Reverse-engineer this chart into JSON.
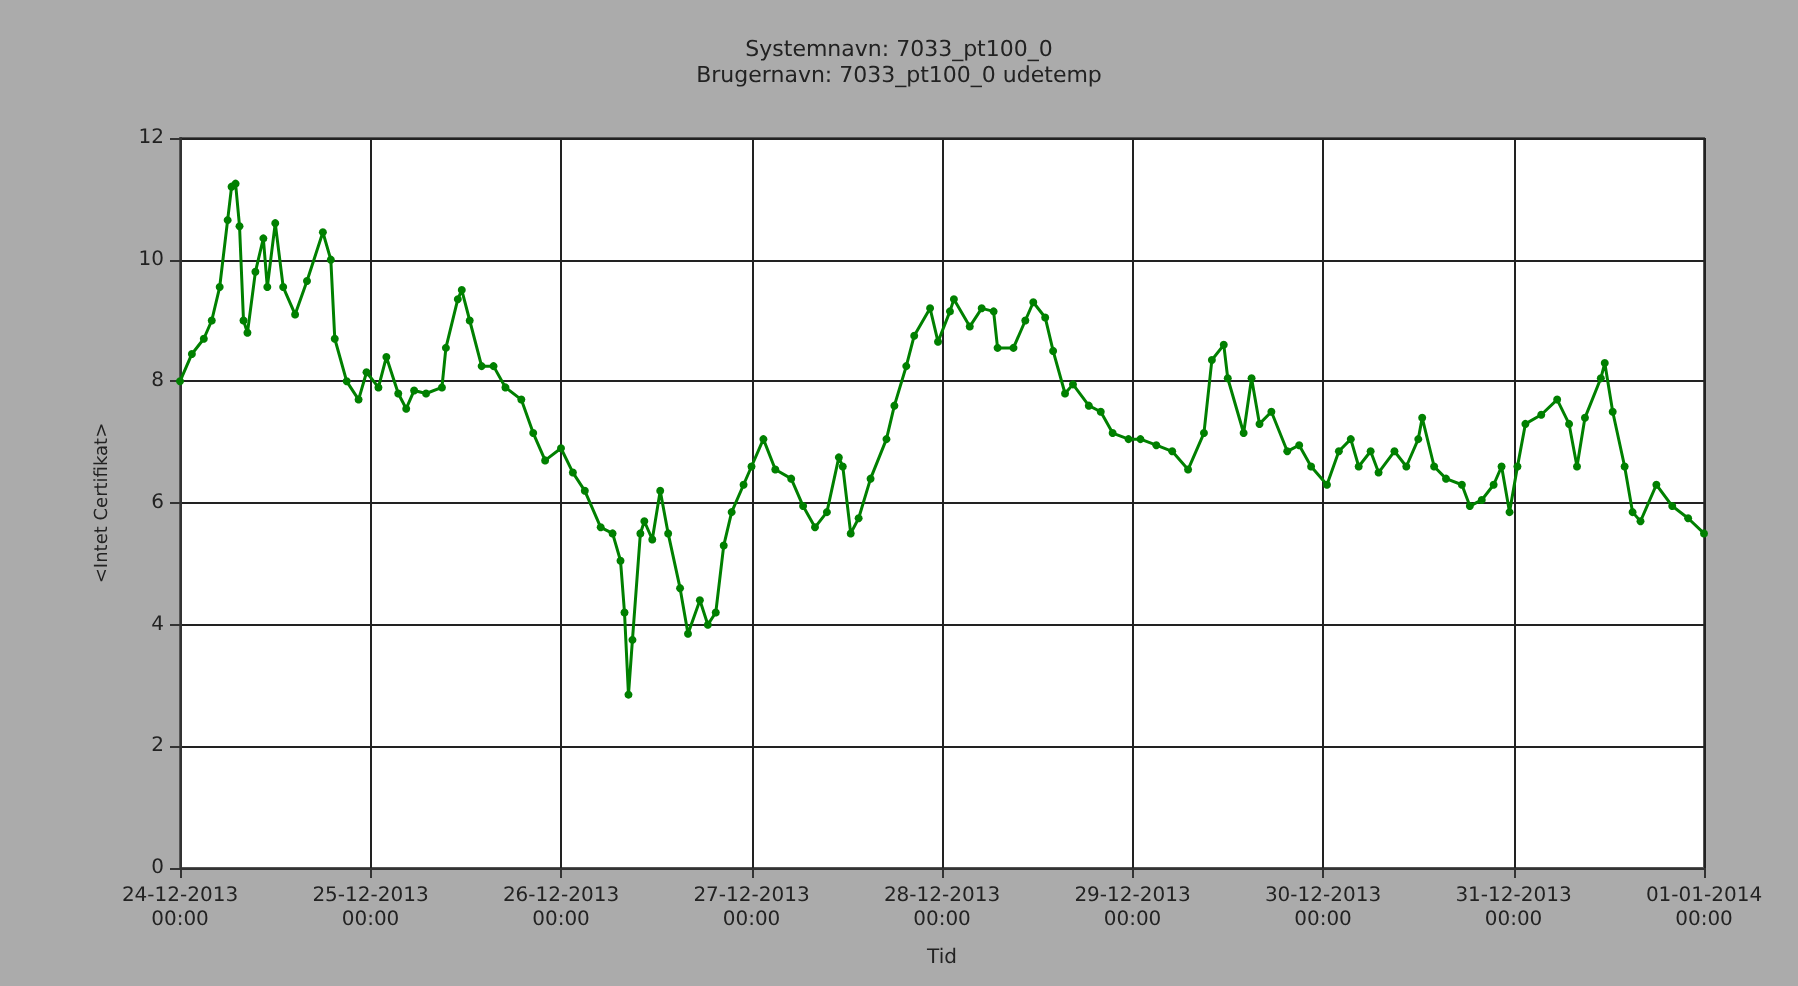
{
  "chart_data": {
    "type": "line",
    "title": "Systemnavn: 7033_pt100_0",
    "subtitle": "Brugernavn: 7033_pt100_0 udetemp",
    "xlabel": "Tid",
    "ylabel": "<Intet Certifikat>",
    "x": [
      "2013-12-24T00:00",
      "2013-12-24T01:30",
      "2013-12-24T03:00",
      "2013-12-24T04:00",
      "2013-12-24T05:00",
      "2013-12-24T06:00",
      "2013-12-24T06:30",
      "2013-12-24T07:00",
      "2013-12-24T07:30",
      "2013-12-24T08:00",
      "2013-12-24T08:30",
      "2013-12-24T09:30",
      "2013-12-24T10:30",
      "2013-12-24T11:00",
      "2013-12-24T12:00",
      "2013-12-24T13:00",
      "2013-12-24T14:30",
      "2013-12-24T16:00",
      "2013-12-24T18:00",
      "2013-12-24T19:00",
      "2013-12-24T19:30",
      "2013-12-24T21:00",
      "2013-12-24T22:30",
      "2013-12-24T23:30",
      "2013-12-25T01:00",
      "2013-12-25T02:00",
      "2013-12-25T03:30",
      "2013-12-25T04:30",
      "2013-12-25T05:30",
      "2013-12-25T07:00",
      "2013-12-25T09:00",
      "2013-12-25T09:30",
      "2013-12-25T11:00",
      "2013-12-25T11:30",
      "2013-12-25T12:30",
      "2013-12-25T14:00",
      "2013-12-25T15:30",
      "2013-12-25T17:00",
      "2013-12-25T19:00",
      "2013-12-25T20:30",
      "2013-12-25T22:00",
      "2013-12-26T00:00",
      "2013-12-26T01:30",
      "2013-12-26T03:00",
      "2013-12-26T05:00",
      "2013-12-26T06:30",
      "2013-12-26T07:30",
      "2013-12-26T08:00",
      "2013-12-26T08:30",
      "2013-12-26T09:00",
      "2013-12-26T10:00",
      "2013-12-26T10:30",
      "2013-12-26T11:30",
      "2013-12-26T12:30",
      "2013-12-26T13:30",
      "2013-12-26T15:00",
      "2013-12-26T16:00",
      "2013-12-26T17:30",
      "2013-12-26T18:30",
      "2013-12-26T19:30",
      "2013-12-26T20:30",
      "2013-12-26T21:30",
      "2013-12-26T23:00",
      "2013-12-27T00:00",
      "2013-12-27T01:30",
      "2013-12-27T03:00",
      "2013-12-27T05:00",
      "2013-12-27T06:30",
      "2013-12-27T08:00",
      "2013-12-27T09:30",
      "2013-12-27T11:00",
      "2013-12-27T11:30",
      "2013-12-27T12:30",
      "2013-12-27T13:30",
      "2013-12-27T15:00",
      "2013-12-27T17:00",
      "2013-12-27T18:00",
      "2013-12-27T19:30",
      "2013-12-27T20:30",
      "2013-12-27T22:30",
      "2013-12-27T23:30",
      "2013-12-28T01:00",
      "2013-12-28T01:30",
      "2013-12-28T03:30",
      "2013-12-28T05:00",
      "2013-12-28T06:30",
      "2013-12-28T07:00",
      "2013-12-28T09:00",
      "2013-12-28T10:30",
      "2013-12-28T11:30",
      "2013-12-28T13:00",
      "2013-12-28T14:00",
      "2013-12-28T15:30",
      "2013-12-28T16:30",
      "2013-12-28T18:30",
      "2013-12-28T20:00",
      "2013-12-28T21:30",
      "2013-12-28T23:30",
      "2013-12-29T01:00",
      "2013-12-29T03:00",
      "2013-12-29T05:00",
      "2013-12-29T07:00",
      "2013-12-29T09:00",
      "2013-12-29T10:00",
      "2013-12-29T11:30",
      "2013-12-29T12:00",
      "2013-12-29T14:00",
      "2013-12-29T15:00",
      "2013-12-29T16:00",
      "2013-12-29T17:30",
      "2013-12-29T19:30",
      "2013-12-29T21:00",
      "2013-12-29T22:30",
      "2013-12-30T00:30",
      "2013-12-30T02:00",
      "2013-12-30T03:30",
      "2013-12-30T04:30",
      "2013-12-30T06:00",
      "2013-12-30T07:00",
      "2013-12-30T09:00",
      "2013-12-30T10:30",
      "2013-12-30T12:00",
      "2013-12-30T12:30",
      "2013-12-30T14:00",
      "2013-12-30T15:30",
      "2013-12-30T17:30",
      "2013-12-30T18:30",
      "2013-12-30T20:00",
      "2013-12-30T21:30",
      "2013-12-30T22:30",
      "2013-12-30T23:30",
      "2013-12-31T00:30",
      "2013-12-31T01:30",
      "2013-12-31T03:30",
      "2013-12-31T05:30",
      "2013-12-31T07:00",
      "2013-12-31T08:00",
      "2013-12-31T09:00",
      "2013-12-31T11:00",
      "2013-12-31T11:30",
      "2013-12-31T12:30",
      "2013-12-31T14:00",
      "2013-12-31T15:00",
      "2013-12-31T16:00",
      "2013-12-31T18:00",
      "2013-12-31T20:00",
      "2013-12-31T22:00",
      "2014-01-01T00:00"
    ],
    "series": [
      {
        "color": "#008000",
        "values": [
          8.0,
          8.45,
          8.7,
          9.0,
          9.55,
          10.65,
          11.2,
          11.25,
          10.55,
          9.0,
          8.8,
          9.8,
          10.35,
          9.55,
          10.6,
          9.55,
          9.1,
          9.65,
          10.45,
          10.0,
          8.7,
          8.0,
          7.7,
          8.15,
          7.9,
          8.4,
          7.8,
          7.55,
          7.85,
          7.8,
          7.9,
          8.55,
          9.35,
          9.5,
          9.0,
          8.25,
          8.25,
          7.9,
          7.7,
          7.15,
          6.7,
          6.9,
          6.5,
          6.2,
          5.6,
          5.5,
          5.05,
          4.2,
          2.85,
          3.75,
          5.5,
          5.7,
          5.4,
          6.2,
          5.5,
          4.6,
          3.85,
          4.4,
          4.0,
          4.2,
          5.3,
          5.85,
          6.3,
          6.6,
          7.05,
          6.55,
          6.4,
          5.95,
          5.6,
          5.85,
          6.75,
          6.6,
          5.5,
          5.75,
          6.4,
          7.05,
          7.6,
          8.25,
          8.75,
          9.2,
          8.65,
          9.15,
          9.35,
          8.9,
          9.2,
          9.15,
          8.55,
          8.55,
          9.0,
          9.3,
          9.05,
          8.5,
          7.8,
          7.95,
          7.6,
          7.5,
          7.15,
          7.05,
          7.05,
          6.95,
          6.85,
          6.55,
          7.15,
          8.35,
          8.6,
          8.05,
          7.15,
          8.05,
          7.3,
          7.5,
          6.85,
          6.95,
          6.6,
          6.3,
          6.85,
          7.05,
          6.6,
          6.85,
          6.5,
          6.85,
          6.6,
          7.05,
          7.4,
          6.6,
          6.4,
          6.3,
          5.95,
          6.05,
          6.3,
          6.6,
          5.85,
          6.6,
          7.3,
          7.45,
          7.7,
          7.3,
          6.6,
          7.4,
          8.05,
          8.3,
          7.5,
          6.6,
          5.85,
          5.7,
          6.3,
          5.95,
          5.75,
          5.5
        ]
      }
    ],
    "xlim": [
      "2013-12-24T00:00",
      "2014-01-01T00:00"
    ],
    "xticks": [
      {
        "value": "2013-12-24T00:00",
        "label": "24-12-2013\n00:00"
      },
      {
        "value": "2013-12-25T00:00",
        "label": "25-12-2013\n00:00"
      },
      {
        "value": "2013-12-26T00:00",
        "label": "26-12-2013\n00:00"
      },
      {
        "value": "2013-12-27T00:00",
        "label": "27-12-2013\n00:00"
      },
      {
        "value": "2013-12-28T00:00",
        "label": "28-12-2013\n00:00"
      },
      {
        "value": "2013-12-29T00:00",
        "label": "29-12-2013\n00:00"
      },
      {
        "value": "2013-12-30T00:00",
        "label": "30-12-2013\n00:00"
      },
      {
        "value": "2013-12-31T00:00",
        "label": "31-12-2013\n00:00"
      },
      {
        "value": "2014-01-01T00:00",
        "label": "01-01-2014\n00:00"
      }
    ],
    "ylim": [
      0,
      12
    ],
    "yticks": [
      0,
      2,
      4,
      6,
      8,
      10,
      12
    ],
    "grid": true,
    "marker": "circle",
    "line_style": "solid"
  }
}
